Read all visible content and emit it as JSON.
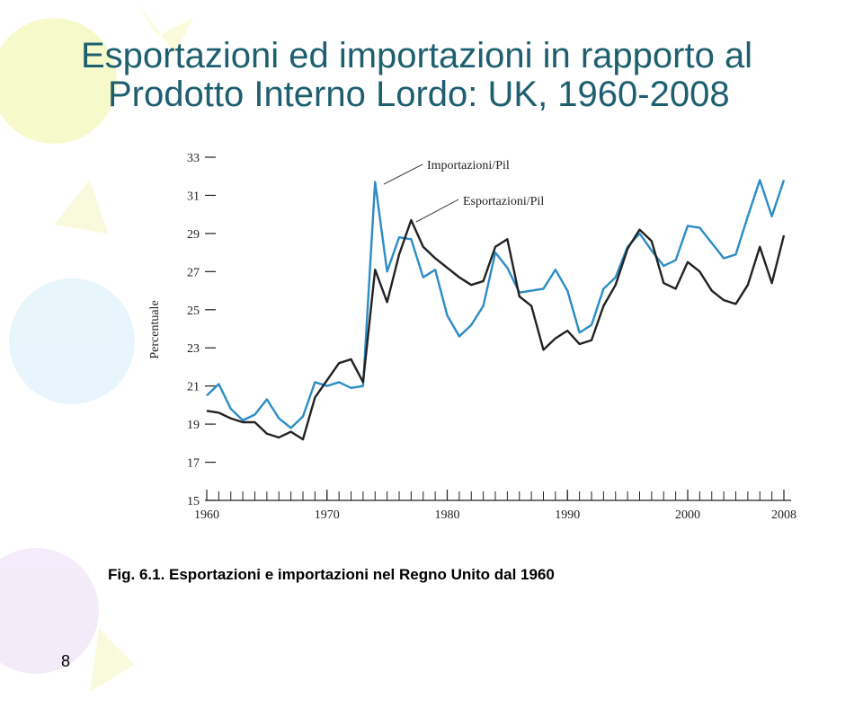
{
  "chart_data": {
    "type": "line",
    "title": [
      "Esportazioni ed importazioni in rapporto al",
      "Prodotto Interno Lordo: UK, 1960-2008"
    ],
    "ylabel": "Percentuale",
    "caption": "Fig. 6.1. Esportazioni e importazioni nel Regno Unito dal 1960",
    "page_number": "8",
    "x": [
      1960,
      1961,
      1962,
      1963,
      1964,
      1965,
      1966,
      1967,
      1968,
      1969,
      1970,
      1971,
      1972,
      1973,
      1974,
      1975,
      1976,
      1977,
      1978,
      1979,
      1980,
      1981,
      1982,
      1983,
      1984,
      1985,
      1986,
      1987,
      1988,
      1989,
      1990,
      1991,
      1992,
      1993,
      1994,
      1995,
      1996,
      1997,
      1998,
      1999,
      2000,
      2001,
      2002,
      2003,
      2004,
      2005,
      2006,
      2007,
      2008
    ],
    "series": [
      {
        "name": "Importazioni/Pil",
        "color": "#2b8cc6",
        "values": [
          20.5,
          21.1,
          19.8,
          19.2,
          19.5,
          20.3,
          19.3,
          18.8,
          19.4,
          21.2,
          21.0,
          21.2,
          20.9,
          21.0,
          31.7,
          27.0,
          28.8,
          28.7,
          26.7,
          27.1,
          24.7,
          23.6,
          24.2,
          25.2,
          28.0,
          27.2,
          25.9,
          26.0,
          26.1,
          27.1,
          26.0,
          23.8,
          24.2,
          26.1,
          26.7,
          28.3,
          29.0,
          28.1,
          27.3,
          27.6,
          29.4,
          29.3,
          28.5,
          27.7,
          27.9,
          29.9,
          31.8,
          29.9,
          31.8
        ]
      },
      {
        "name": "Esportazioni/Pil",
        "color": "#222222",
        "values": [
          19.7,
          19.6,
          19.3,
          19.1,
          19.1,
          18.5,
          18.3,
          18.6,
          18.2,
          20.4,
          21.3,
          22.2,
          22.4,
          21.2,
          27.1,
          25.4,
          27.9,
          29.7,
          28.3,
          27.7,
          27.2,
          26.7,
          26.3,
          26.5,
          28.3,
          28.7,
          25.7,
          25.2,
          22.9,
          23.5,
          23.9,
          23.2,
          23.4,
          25.2,
          26.3,
          28.2,
          29.2,
          28.6,
          26.4,
          26.1,
          27.5,
          27.0,
          26.0,
          25.5,
          25.3,
          26.3,
          28.3,
          26.4,
          28.9
        ]
      }
    ],
    "xlim": [
      1960,
      2008
    ],
    "xticks": [
      1960,
      1970,
      1980,
      1990,
      2000,
      2008
    ],
    "ylim": [
      15,
      33
    ],
    "yticks": [
      15,
      17,
      19,
      21,
      23,
      25,
      27,
      29,
      31,
      33
    ]
  }
}
